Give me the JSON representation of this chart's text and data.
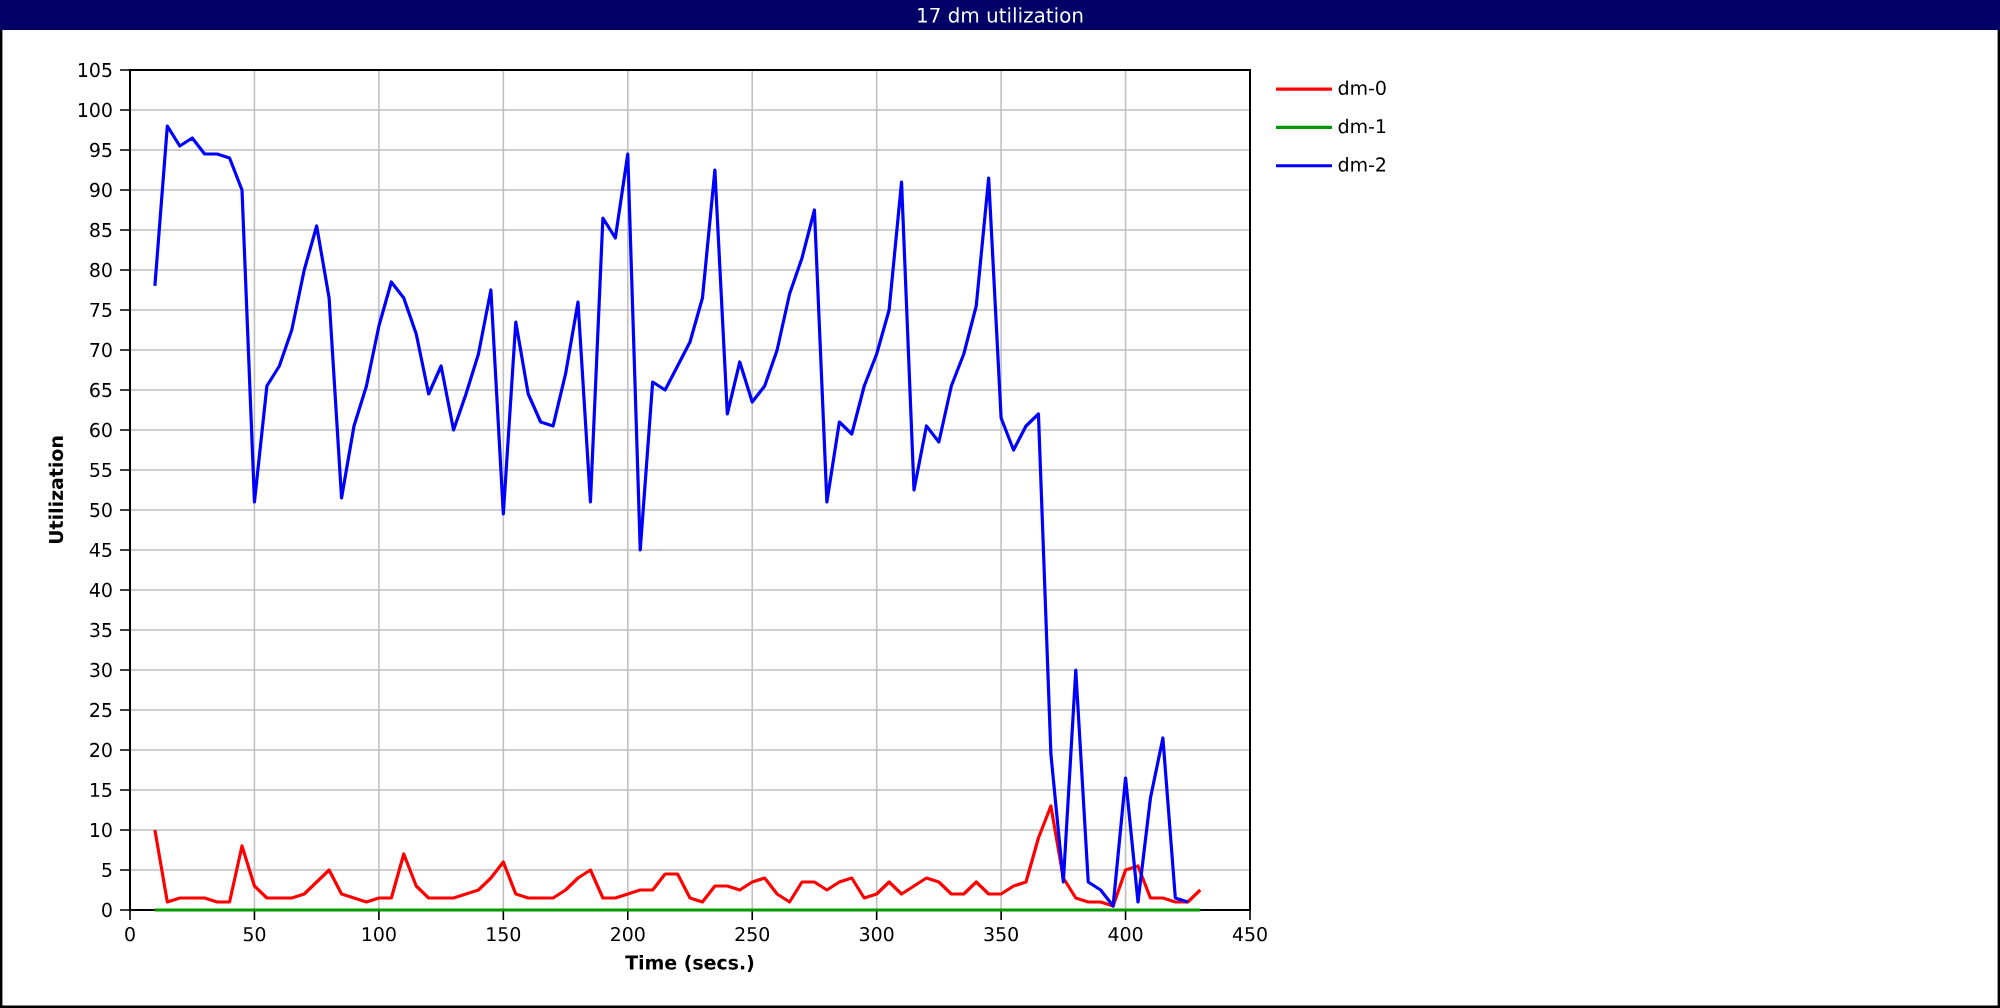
{
  "chart_data": {
    "type": "line",
    "title": "17 dm utilization",
    "xlabel": "Time (secs.)",
    "ylabel": "Utilization",
    "x": [
      10,
      15,
      20,
      25,
      30,
      35,
      40,
      45,
      50,
      55,
      60,
      65,
      70,
      75,
      80,
      85,
      90,
      95,
      100,
      105,
      110,
      115,
      120,
      125,
      130,
      135,
      140,
      145,
      150,
      155,
      160,
      165,
      170,
      175,
      180,
      185,
      190,
      195,
      200,
      205,
      210,
      215,
      220,
      225,
      230,
      235,
      240,
      245,
      250,
      255,
      260,
      265,
      270,
      275,
      280,
      285,
      290,
      295,
      300,
      305,
      310,
      315,
      320,
      325,
      330,
      335,
      340,
      345,
      350,
      355,
      360,
      365,
      370,
      375,
      380,
      385,
      390,
      395,
      400,
      405,
      410,
      415,
      420,
      425,
      430
    ],
    "series": [
      {
        "name": "dm-0",
        "color": "#ff0000",
        "values": [
          10,
          1,
          1.5,
          1.5,
          1.5,
          1,
          1,
          8,
          3,
          1.5,
          1.5,
          1.5,
          2,
          3.5,
          5,
          2,
          1.5,
          1,
          1.5,
          1.5,
          7,
          3,
          1.5,
          1.5,
          1.5,
          2,
          2.5,
          4,
          6,
          2,
          1.5,
          1.5,
          1.5,
          2.5,
          4,
          5,
          1.5,
          1.5,
          2,
          2.5,
          2.5,
          4.5,
          4.5,
          1.5,
          1,
          3,
          3,
          2.5,
          3.5,
          4,
          2,
          1,
          3.5,
          3.5,
          2.5,
          3.5,
          4,
          1.5,
          2,
          3.5,
          2,
          3,
          4,
          3.5,
          2,
          2,
          3.5,
          2,
          2,
          3,
          3.5,
          9,
          13,
          4,
          1.5,
          1,
          1,
          0.5,
          5,
          5.5,
          1.5,
          1.5,
          1,
          1,
          2.5
        ]
      },
      {
        "name": "dm-1",
        "color": "#009900",
        "values": [
          0,
          0,
          0,
          0,
          0,
          0,
          0,
          0,
          0,
          0,
          0,
          0,
          0,
          0,
          0,
          0,
          0,
          0,
          0,
          0,
          0,
          0,
          0,
          0,
          0,
          0,
          0,
          0,
          0,
          0,
          0,
          0,
          0,
          0,
          0,
          0,
          0,
          0,
          0,
          0,
          0,
          0,
          0,
          0,
          0,
          0,
          0,
          0,
          0,
          0,
          0,
          0,
          0,
          0,
          0,
          0,
          0,
          0,
          0,
          0,
          0,
          0,
          0,
          0,
          0,
          0,
          0,
          0,
          0,
          0,
          0,
          0,
          0,
          0,
          0,
          0,
          0,
          0,
          0,
          0,
          0,
          0,
          0,
          0,
          0
        ]
      },
      {
        "name": "dm-2",
        "color": "#0000ff",
        "values": [
          78,
          98,
          95.5,
          96.5,
          94.5,
          94.5,
          94,
          90,
          51,
          65.5,
          68,
          72.5,
          80,
          85.5,
          76.5,
          51.5,
          60.5,
          65.5,
          73,
          78.5,
          76.5,
          72,
          64.5,
          68,
          60,
          64.5,
          69.5,
          77.5,
          49.5,
          73.5,
          64.5,
          61,
          60.5,
          67,
          76,
          51,
          86.5,
          84,
          94.5,
          45,
          66,
          65,
          68,
          71,
          76.5,
          92.5,
          62,
          68.5,
          63.5,
          65.5,
          70,
          77,
          81.5,
          87.5,
          51,
          61,
          59.5,
          65.5,
          69.5,
          75,
          91,
          52.5,
          60.5,
          58.5,
          65.5,
          69.5,
          75.5,
          91.5,
          61.5,
          57.5,
          60.5,
          62,
          19.5,
          3.5,
          30,
          3.5,
          2.5,
          0.5,
          16.5,
          1,
          14,
          21.5,
          1.5,
          1,
          null
        ]
      }
    ],
    "xlim": [
      0,
      450
    ],
    "ylim": [
      0,
      105
    ],
    "xticks": [
      0,
      50,
      100,
      150,
      200,
      250,
      300,
      350,
      400,
      450
    ],
    "yticks": [
      0,
      5,
      10,
      15,
      20,
      25,
      30,
      35,
      40,
      45,
      50,
      55,
      60,
      65,
      70,
      75,
      80,
      85,
      90,
      95,
      100,
      105
    ],
    "grid": true,
    "legend": "top right",
    "marker": "none",
    "line_style": "solid"
  }
}
